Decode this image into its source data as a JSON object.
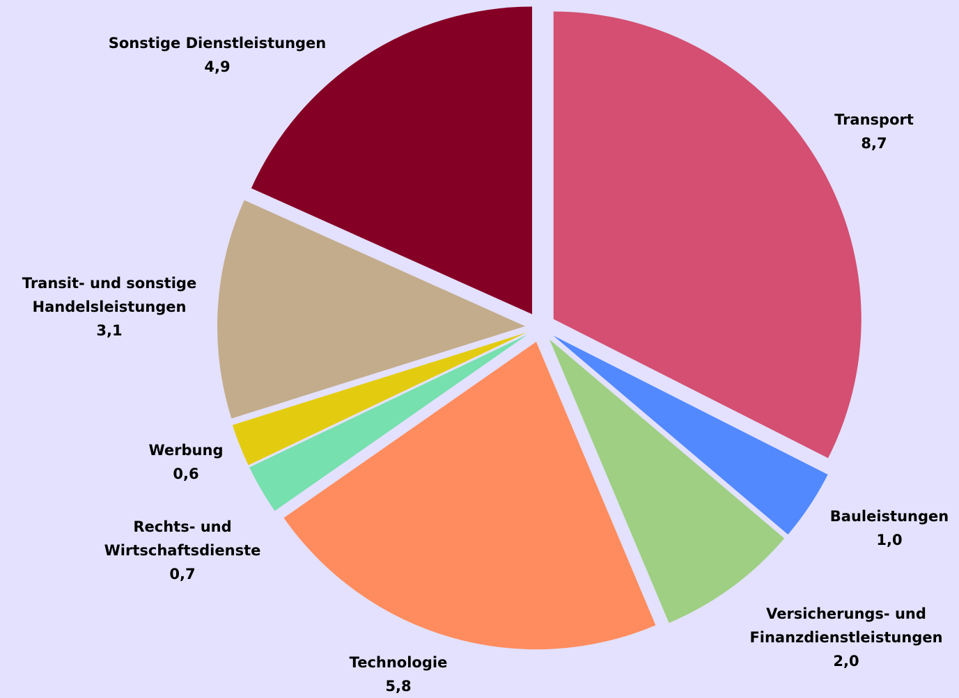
{
  "chart_data": {
    "type": "pie",
    "categories": [
      "Transport",
      "Bauleistungen",
      "Versicherungs- und Finanzdienstleistungen",
      "Technologie",
      "Rechts- und Wirtschaftsdienste",
      "Werbung",
      "Transit- und sonstige Handelsleistungen",
      "Sonstige Dienstleistungen"
    ],
    "values": [
      8.7,
      1.0,
      2.0,
      5.8,
      0.7,
      0.6,
      3.1,
      4.9
    ],
    "value_labels": [
      "8,7",
      "1,0",
      "2,0",
      "5,8",
      "0,7",
      "0,6",
      "3,1",
      "4,9"
    ],
    "colors": [
      "#d44f71",
      "#5289ff",
      "#9ecf82",
      "#ff8c5e",
      "#76e0ae",
      "#e3cc10",
      "#c3ac8b",
      "#850025"
    ]
  }
}
